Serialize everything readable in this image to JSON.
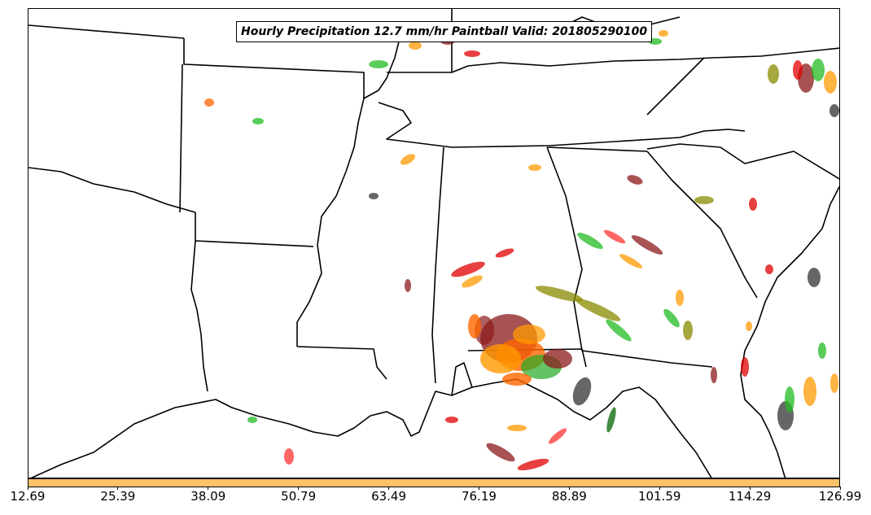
{
  "map": {
    "title": "Hourly Precipitation 12.7 mm/hr Paintball Valid: 201805290100",
    "colorbar_color": "#ffc266",
    "colorbar_ticks": [
      "12.69",
      "25.39",
      "38.09",
      "50.79",
      "63.49",
      "76.19",
      "88.89",
      "101.59",
      "114.29",
      "126.99"
    ],
    "member_colors": [
      "#8b1a1a",
      "#ff6600",
      "#ff9900",
      "#e00000",
      "#22bb22",
      "#006400",
      "#8a8a00",
      "#333333",
      "#ff3333"
    ]
  }
}
